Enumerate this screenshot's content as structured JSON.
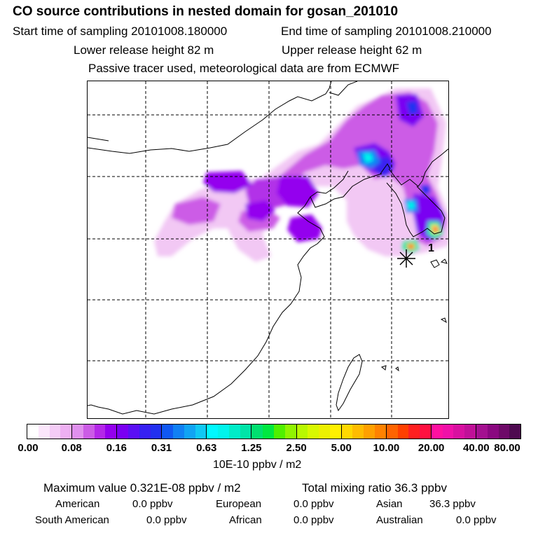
{
  "header": {
    "title": "CO  source contributions in nested domain for gosan_201010",
    "start_time": "Start time of sampling 20101008.180000",
    "end_time": "End time of sampling 20101008.210000",
    "lower_release": "Lower release height   82 m",
    "upper_release": "Upper release height   62 m",
    "tracer_info": "Passive tracer used, meteorological data are from ECMWF"
  },
  "map": {
    "release_marker_label": "1",
    "peak_color": "#ff1060",
    "station_marker": "asterisk-icon"
  },
  "colorbar": {
    "ticks": [
      "0.00",
      "0.08",
      "0.16",
      "0.31",
      "0.63",
      "1.25",
      "2.50",
      "5.00",
      "10.00",
      "20.00",
      "40.00",
      "80.00"
    ],
    "units": "10E-10 ppbv / m2",
    "colors": [
      [
        "#ffffff",
        "#fbe6fb",
        "#f4ccf6",
        "#eeb0f2"
      ],
      [
        "#e090ee",
        "#cc5ce6",
        "#b428e8",
        "#9400ee"
      ],
      [
        "#7a00f2",
        "#5a10f4",
        "#3620f2",
        "#2230f0"
      ],
      [
        "#1058f2",
        "#1080f4",
        "#10a4f4",
        "#10c8f4"
      ],
      [
        "#00f8ff",
        "#00f4ec",
        "#00ecc8",
        "#00e4a8"
      ],
      [
        "#00e070",
        "#00e840",
        "#50f000",
        "#90f400"
      ],
      [
        "#b8f800",
        "#d8f800",
        "#ecf000",
        "#fff000"
      ],
      [
        "#ffd800",
        "#ffbc00",
        "#ffa000",
        "#ff8200"
      ],
      [
        "#ff6400",
        "#ff4000",
        "#ff2020",
        "#ff1040"
      ],
      [
        "#ff10a0",
        "#f010a8",
        "#d810a0",
        "#c01098"
      ],
      [
        "#a41090",
        "#8a0880",
        "#6e0a68",
        "#4e0a50"
      ]
    ]
  },
  "stats": {
    "max_value": "Maximum value  0.321E-08 ppbv / m2",
    "total_mixing": "Total mixing ratio       36.3 ppbv",
    "american_label": "American",
    "american_value": "0.0 ppbv",
    "european_label": "European",
    "european_value": "0.0 ppbv",
    "asian_label": "Asian",
    "asian_value": "36.3 ppbv",
    "south_american_label": "South American",
    "south_american_value": "0.0 ppbv",
    "african_label": "African",
    "african_value": "0.0 ppbv",
    "australian_label": "Australian",
    "australian_value": "0.0 ppbv"
  }
}
